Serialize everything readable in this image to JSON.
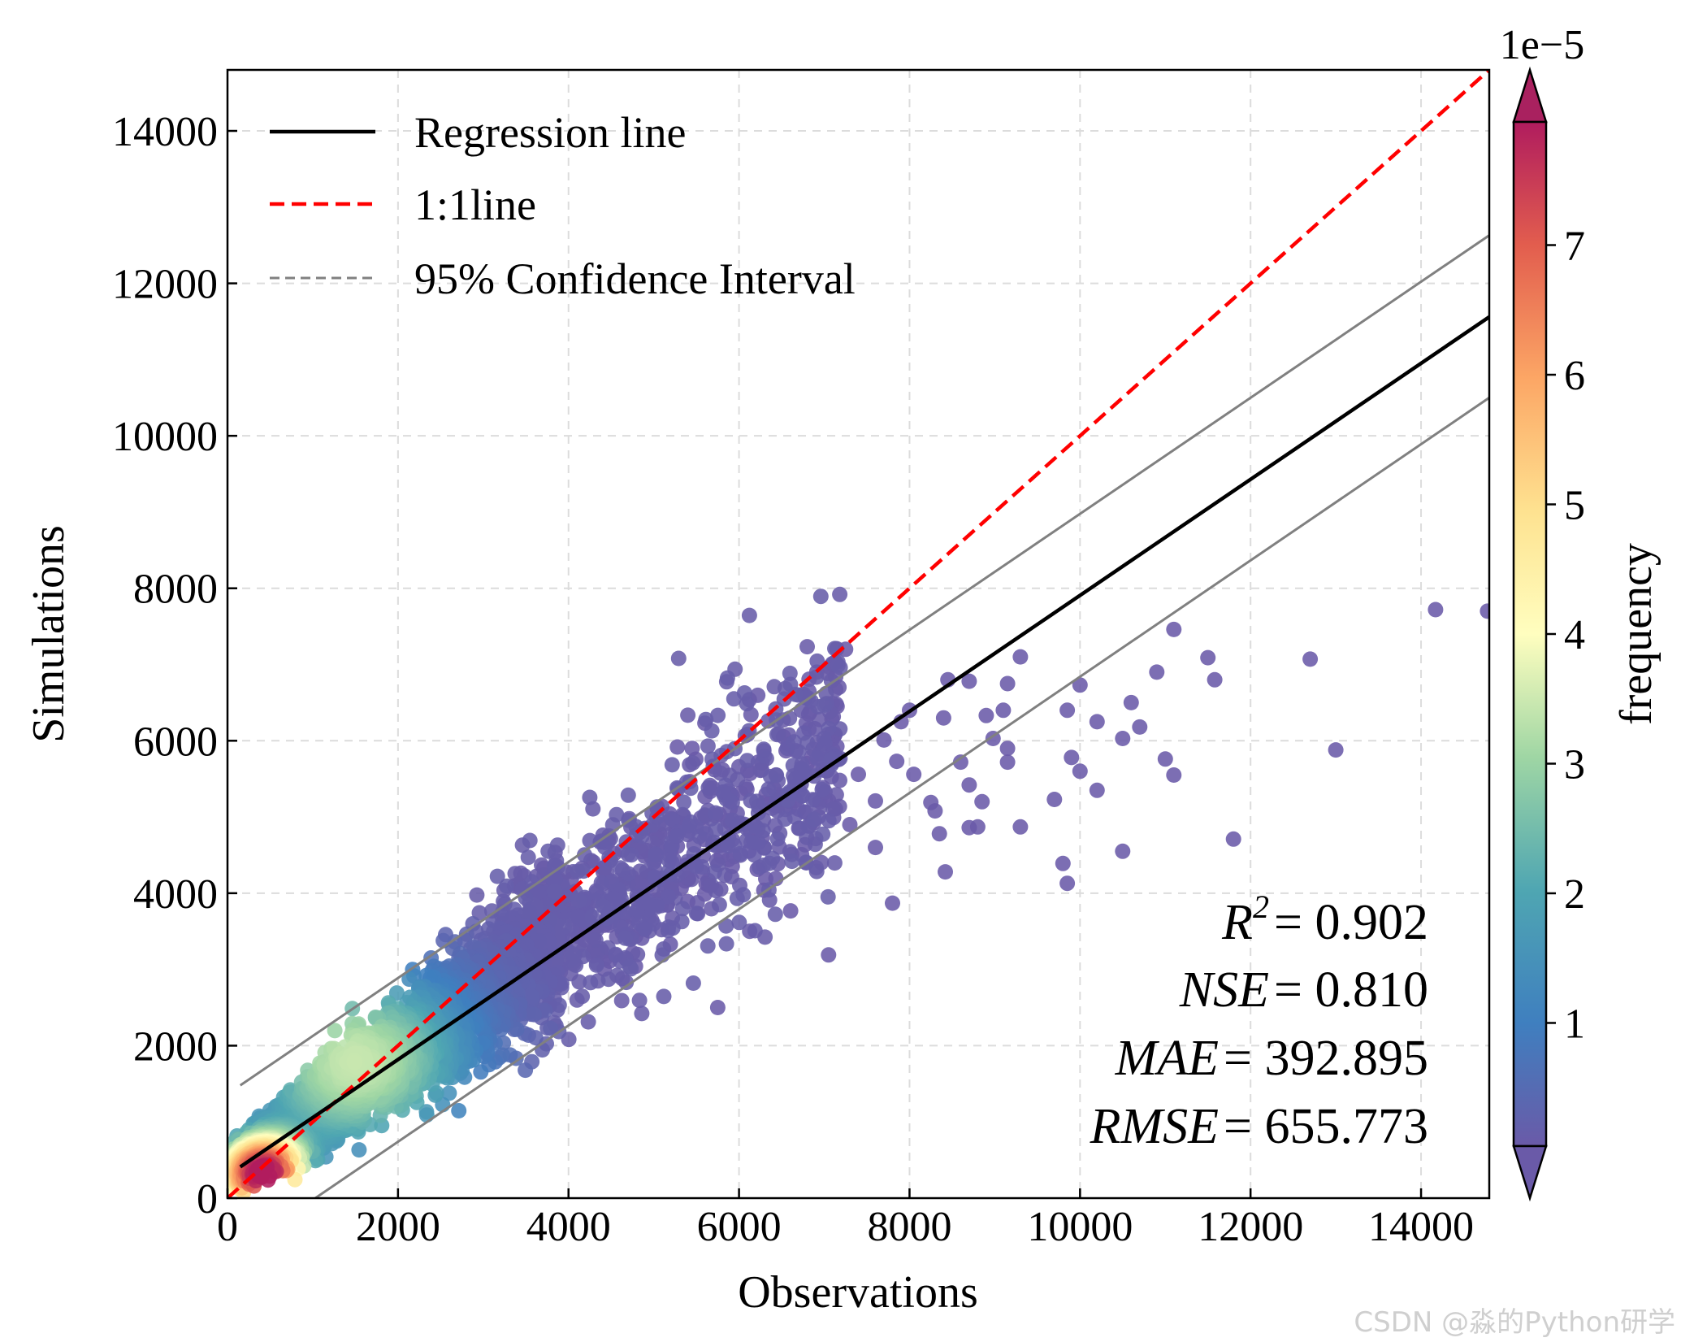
{
  "chart_data": {
    "type": "scatter",
    "xlabel": "Observations",
    "ylabel": "Simulations",
    "xlim": [
      0,
      14800
    ],
    "ylim": [
      0,
      14800
    ],
    "xticks": [
      0,
      2000,
      4000,
      6000,
      8000,
      10000,
      12000,
      14000
    ],
    "yticks": [
      0,
      2000,
      4000,
      6000,
      8000,
      10000,
      12000,
      14000
    ],
    "grid": true,
    "legend_position": "top-left",
    "legend": [
      {
        "label": "Regression line",
        "style": "solid",
        "color": "#000000"
      },
      {
        "label": "1:1line",
        "style": "dashed",
        "color": "#ff0000"
      },
      {
        "label": "95% Confidence Interval",
        "style": "dashed",
        "color": "#808080"
      }
    ],
    "regression_line": {
      "x": [
        150,
        14800
      ],
      "y": [
        410,
        11560
      ]
    },
    "one_to_one_line": {
      "x": [
        0,
        14800
      ],
      "y": [
        0,
        14800
      ]
    },
    "confidence_interval": {
      "upper": {
        "x": [
          150,
          14800
        ],
        "y": [
          1480,
          12630
        ]
      },
      "lower": {
        "x": [
          1030,
          14800
        ],
        "y": [
          0,
          10500
        ]
      }
    },
    "stats": [
      {
        "name": "R",
        "sup": "2",
        "value": "0.902"
      },
      {
        "name": "NSE",
        "value": "0.810"
      },
      {
        "name": "MAE",
        "value": "392.895"
      },
      {
        "name": "RMSE",
        "value": "655.773"
      }
    ],
    "colorbar": {
      "label": "frequency",
      "scale_label": "1e−5",
      "ticks": [
        1,
        2,
        3,
        4,
        5,
        6,
        7
      ],
      "range": [
        0.05,
        7.95
      ],
      "colormap": "Spectral_r",
      "extend": "both"
    },
    "outliers": [
      [
        14170,
        7720
      ],
      [
        14780,
        7700
      ],
      [
        11100,
        7460
      ],
      [
        12700,
        7070
      ],
      [
        11500,
        7090
      ],
      [
        11580,
        6800
      ],
      [
        13000,
        5880
      ],
      [
        11800,
        4710
      ],
      [
        10900,
        6900
      ],
      [
        10600,
        6500
      ],
      [
        10700,
        6180
      ],
      [
        10200,
        6250
      ],
      [
        10500,
        6030
      ],
      [
        10000,
        6730
      ],
      [
        10000,
        5600
      ],
      [
        9900,
        5780
      ],
      [
        9850,
        6400
      ],
      [
        9700,
        5230
      ],
      [
        10200,
        5350
      ],
      [
        11000,
        5760
      ],
      [
        11100,
        5550
      ],
      [
        10500,
        4550
      ],
      [
        9800,
        4390
      ],
      [
        9850,
        4130
      ],
      [
        9300,
        4870
      ],
      [
        9150,
        5900
      ],
      [
        9300,
        7100
      ],
      [
        9150,
        6750
      ],
      [
        9100,
        6400
      ],
      [
        8900,
        6330
      ],
      [
        9150,
        5720
      ],
      [
        8980,
        6030
      ],
      [
        8700,
        6780
      ],
      [
        8400,
        6300
      ],
      [
        8450,
        6800
      ],
      [
        8600,
        5720
      ],
      [
        8700,
        5420
      ],
      [
        8850,
        5200
      ],
      [
        8800,
        4870
      ],
      [
        8700,
        4860
      ],
      [
        8420,
        4280
      ],
      [
        8350,
        4780
      ],
      [
        8300,
        5080
      ],
      [
        8250,
        5190
      ],
      [
        8050,
        5560
      ],
      [
        8000,
        6400
      ],
      [
        7900,
        6250
      ],
      [
        7850,
        5730
      ],
      [
        7800,
        3870
      ],
      [
        7700,
        6010
      ],
      [
        7600,
        5210
      ],
      [
        7400,
        5560
      ],
      [
        7250,
        7200
      ],
      [
        7150,
        6450
      ],
      [
        7050,
        3190
      ],
      [
        6950,
        5770
      ],
      [
        6800,
        5700
      ],
      [
        6650,
        5400
      ],
      [
        5750,
        2500
      ],
      [
        5600,
        6230
      ],
      [
        5450,
        5900
      ],
      [
        6950,
        5200
      ],
      [
        6700,
        4850
      ],
      [
        7300,
        4900
      ],
      [
        7600,
        4600
      ]
    ]
  },
  "watermark": "CSDN @淼的Python研学"
}
